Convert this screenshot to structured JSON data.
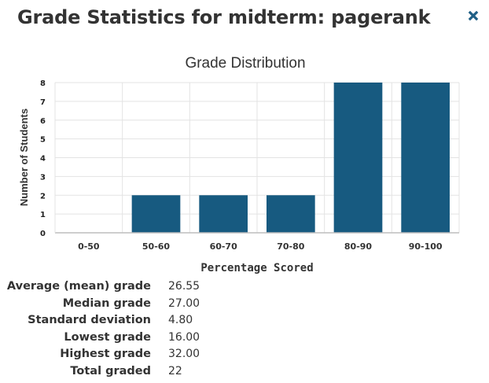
{
  "header": {
    "title": "Grade Statistics for midterm: pagerank"
  },
  "icons": {
    "close": "close-icon"
  },
  "colors": {
    "bar": "#175a80",
    "close_icon": "#1f5f86",
    "grid": "#e3e3e3",
    "axis": "#bdbdbd"
  },
  "chart_data": {
    "type": "bar",
    "title": "Grade Distribution",
    "xlabel": "Percentage Scored",
    "ylabel": "Number of Students",
    "categories": [
      "0-50",
      "50-60",
      "60-70",
      "70-80",
      "80-90",
      "90-100"
    ],
    "values": [
      0,
      2,
      2,
      2,
      8,
      8
    ],
    "ylim": [
      0,
      8
    ],
    "yticks": [
      0,
      1,
      2,
      3,
      4,
      5,
      6,
      7,
      8
    ],
    "grid": true
  },
  "stats": [
    {
      "label": "Average (mean) grade",
      "value": "26.55"
    },
    {
      "label": "Median grade",
      "value": "27.00"
    },
    {
      "label": "Standard deviation",
      "value": "4.80"
    },
    {
      "label": "Lowest grade",
      "value": "16.00"
    },
    {
      "label": "Highest grade",
      "value": "32.00"
    },
    {
      "label": "Total graded",
      "value": "22"
    }
  ]
}
